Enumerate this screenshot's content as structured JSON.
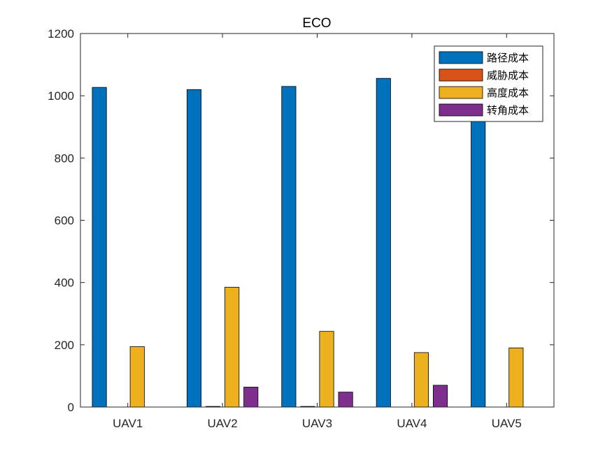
{
  "chart_data": {
    "type": "bar",
    "title": "ECO",
    "xlabel": "",
    "ylabel": "",
    "categories": [
      "UAV1",
      "UAV2",
      "UAV3",
      "UAV4",
      "UAV5"
    ],
    "ylim": [
      0,
      1200
    ],
    "yticks": [
      0,
      200,
      400,
      600,
      800,
      1000,
      1200
    ],
    "grid": false,
    "legend_position": "top-right",
    "series": [
      {
        "name": "路径成本",
        "color": "#0072BD",
        "values": [
          1027,
          1020,
          1030,
          1056,
          1000
        ]
      },
      {
        "name": "威胁成本",
        "color": "#D95319",
        "values": [
          0,
          2,
          2,
          0,
          0
        ]
      },
      {
        "name": "高度成本",
        "color": "#EDB120",
        "values": [
          194,
          385,
          243,
          175,
          190
        ]
      },
      {
        "name": "转角成本",
        "color": "#7E2F8E",
        "values": [
          0,
          64,
          48,
          70,
          0
        ]
      }
    ]
  }
}
